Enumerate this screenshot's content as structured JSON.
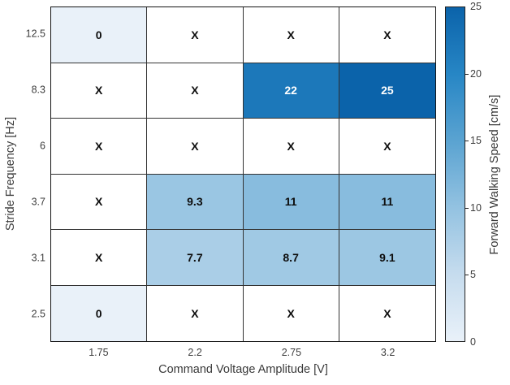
{
  "chart_data": {
    "type": "heatmap",
    "xlabel": "Command Voltage Amplitude [V]",
    "ylabel": "Stride Frequency [Hz]",
    "x_categories": [
      "1.75",
      "2.2",
      "2.75",
      "3.2"
    ],
    "y_categories": [
      "12.5",
      "8.3",
      "6",
      "3.7",
      "3.1",
      "2.5"
    ],
    "matrix": [
      [
        "0",
        "X",
        "X",
        "X"
      ],
      [
        "X",
        "X",
        "22",
        "25"
      ],
      [
        "X",
        "X",
        "X",
        "X"
      ],
      [
        "X",
        "9.3",
        "11",
        "11"
      ],
      [
        "X",
        "7.7",
        "8.7",
        "9.1"
      ],
      [
        "0",
        "X",
        "X",
        "X"
      ]
    ],
    "missing_marker": "X",
    "colorbar": {
      "label": "Forward Walking Speed [cm/s]",
      "min": 0,
      "max": 25,
      "ticks": [
        0,
        5,
        10,
        15,
        20,
        25
      ]
    },
    "colormap": [
      {
        "t": 0.0,
        "color": "#e9f1f9"
      },
      {
        "t": 0.2,
        "color": "#c6dcee"
      },
      {
        "t": 0.4,
        "color": "#93c2e1"
      },
      {
        "t": 0.6,
        "color": "#5aa3d1"
      },
      {
        "t": 0.8,
        "color": "#2786c5"
      },
      {
        "t": 1.0,
        "color": "#0b63aa"
      }
    ],
    "missing_color": "#ffffff",
    "text_dark": "#0d0d0d",
    "text_light": "#ffffff"
  }
}
